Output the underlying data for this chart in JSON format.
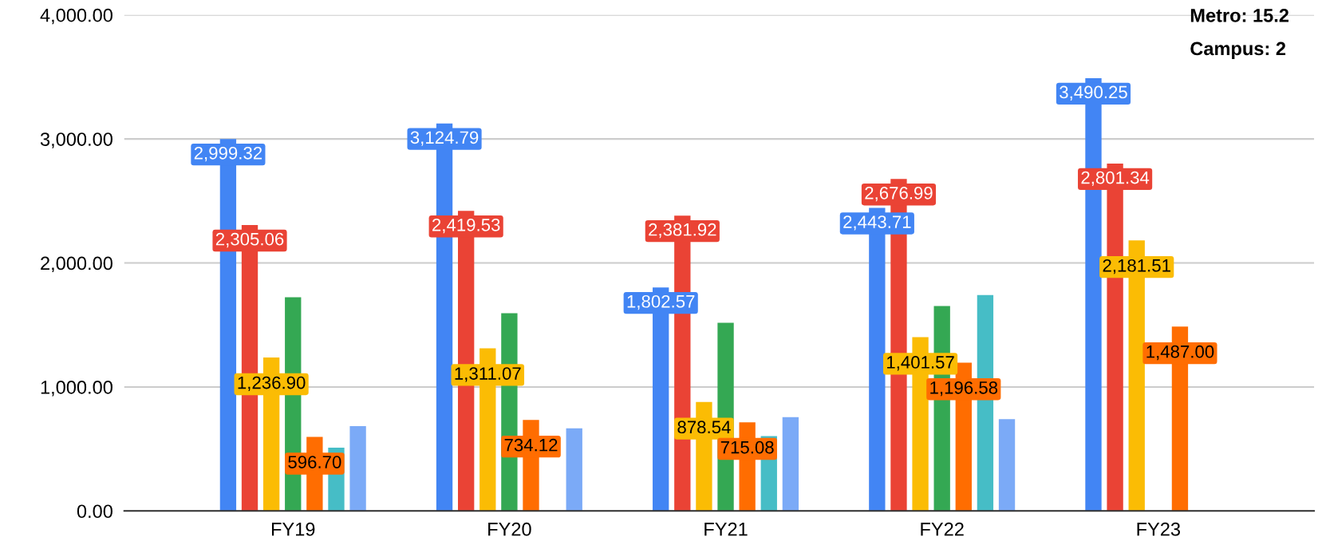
{
  "chart_data": {
    "type": "bar",
    "categories": [
      "FY19",
      "FY20",
      "FY21",
      "FY22",
      "FY23"
    ],
    "series": [
      {
        "color": "#4285f4",
        "values": [
          2999.32,
          3124.79,
          1802.57,
          2443.71,
          3490.25
        ],
        "value_labels": [
          "2,999.32",
          "3,124.79",
          "1,802.57",
          "2,443.71",
          "3,490.25"
        ]
      },
      {
        "color": "#ea4335",
        "values": [
          2305.06,
          2419.53,
          2381.92,
          2676.99,
          2801.34
        ],
        "value_labels": [
          "2,305.06",
          "2,419.53",
          "2,381.92",
          "2,676.99",
          "2,801.34"
        ]
      },
      {
        "color": "#fbbc04",
        "values": [
          1236.9,
          1311.07,
          878.54,
          1401.57,
          2181.51
        ],
        "value_labels": [
          "1,236.90",
          "1,311.07",
          "878.54",
          "1,401.57",
          "2,181.51"
        ]
      },
      {
        "color": "#34a853",
        "values": [
          1724,
          1595,
          1517,
          1652,
          null
        ]
      },
      {
        "color": "#ff6d01",
        "values": [
          596.7,
          734.12,
          715.08,
          1196.58,
          1487.0
        ],
        "value_labels": [
          "596.70",
          "734.12",
          "715.08",
          "1,196.58",
          "1,487.00"
        ]
      },
      {
        "color": "#46bdc6",
        "values": [
          511,
          null,
          603,
          1741,
          null
        ]
      },
      {
        "color": "#7baaf7",
        "values": [
          684,
          667,
          756,
          741,
          null
        ]
      }
    ],
    "ylim": [
      0,
      4000
    ],
    "yticks": [
      {
        "value": 0,
        "label": "0.00"
      },
      {
        "value": 1000,
        "label": "1,000.00"
      },
      {
        "value": 2000,
        "label": "2,000.00"
      },
      {
        "value": 3000,
        "label": "3,000.00"
      },
      {
        "value": 4000,
        "label": "4,000.00"
      }
    ],
    "grid": "y",
    "annotations": [
      "Metro: 15.2",
      "Campus: 2"
    ]
  }
}
